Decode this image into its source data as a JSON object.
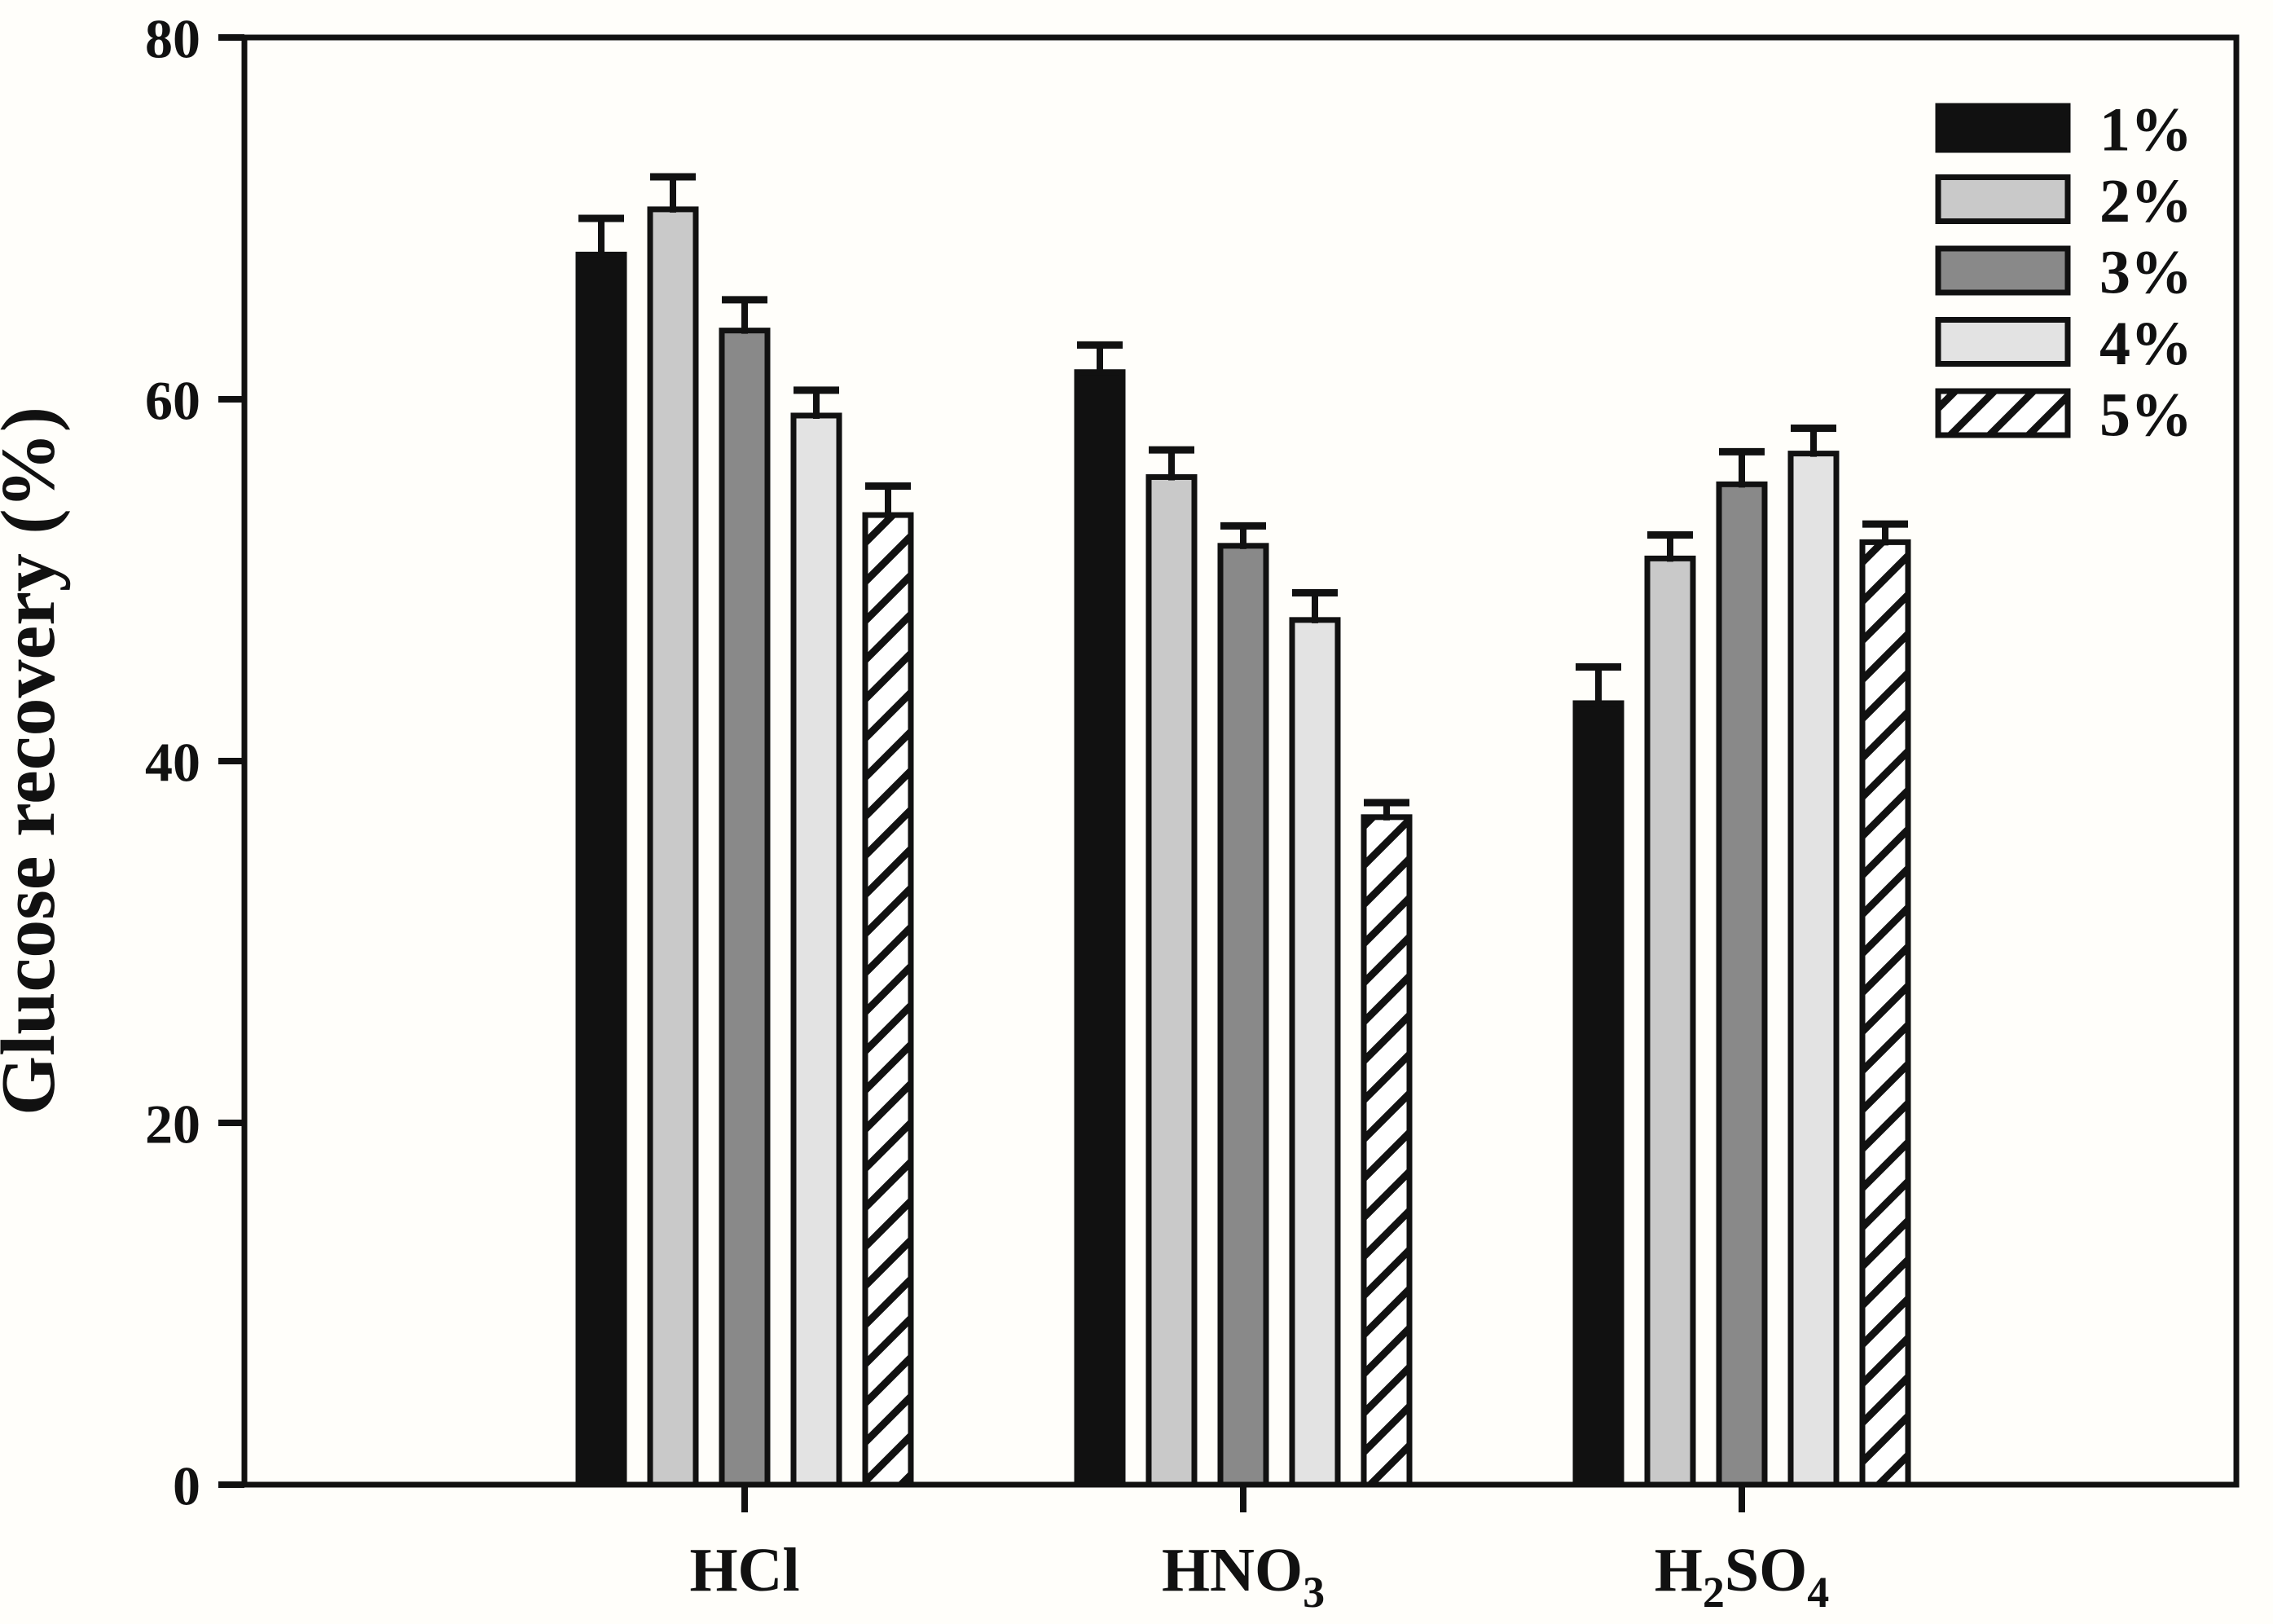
{
  "figure": {
    "background": "#fffefa",
    "ink": "#111111"
  },
  "chart_data": {
    "type": "bar",
    "title": "",
    "xlabel": "",
    "ylabel": "Glucose recovery (%)",
    "ylim": [
      0,
      80
    ],
    "yticks": [
      0,
      20,
      40,
      60,
      80
    ],
    "ytick_labels": [
      "0",
      "20",
      "40",
      "60",
      "80"
    ],
    "grid": false,
    "legend_position": "top-right",
    "error_bars": "upper",
    "categories": [
      "HCl",
      "HNO3",
      "H2SO4"
    ],
    "categories_display": [
      [
        {
          "t": "HCl",
          "sub": false
        }
      ],
      [
        {
          "t": "HNO",
          "sub": false
        },
        {
          "t": "3",
          "sub": true
        }
      ],
      [
        {
          "t": "H",
          "sub": false
        },
        {
          "t": "2",
          "sub": true
        },
        {
          "t": "SO",
          "sub": false
        },
        {
          "t": "4",
          "sub": true
        }
      ]
    ],
    "series": [
      {
        "name": "1%",
        "fill": "#111111",
        "pattern": "solid",
        "values": [
          68.0,
          61.5,
          43.2
        ],
        "errors_plus": [
          2.0,
          1.5,
          2.0
        ]
      },
      {
        "name": "2%",
        "fill": "#c9c9c9",
        "pattern": "solid",
        "values": [
          70.5,
          55.7,
          51.2
        ],
        "errors_plus": [
          1.8,
          1.5,
          1.3
        ]
      },
      {
        "name": "3%",
        "fill": "#898989",
        "pattern": "solid",
        "values": [
          63.8,
          51.9,
          55.3
        ],
        "errors_plus": [
          1.7,
          1.1,
          1.8
        ]
      },
      {
        "name": "4%",
        "fill": "#e3e3e3",
        "pattern": "solid",
        "values": [
          59.1,
          47.8,
          57.0
        ],
        "errors_plus": [
          1.4,
          1.5,
          1.4
        ]
      },
      {
        "name": "5%",
        "fill": "#ffffff",
        "pattern": "diagonal-hatch",
        "values": [
          53.6,
          36.9,
          52.1
        ],
        "errors_plus": [
          1.6,
          0.8,
          1.0
        ]
      }
    ]
  }
}
